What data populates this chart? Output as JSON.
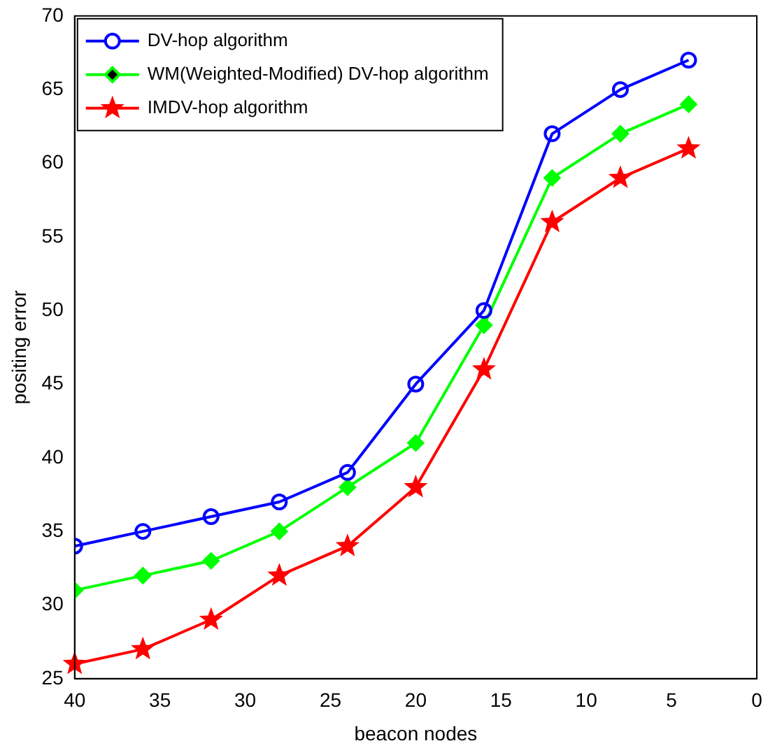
{
  "chart_data": {
    "type": "line",
    "xlabel": "beacon nodes",
    "ylabel": "positing error",
    "x": [
      40,
      36,
      32,
      28,
      24,
      20,
      16,
      12,
      8,
      4
    ],
    "xlim": [
      40,
      0
    ],
    "xticks": [
      40,
      35,
      30,
      25,
      20,
      15,
      10,
      5,
      0
    ],
    "ylim": [
      25,
      70
    ],
    "yticks": [
      25,
      30,
      35,
      40,
      45,
      50,
      55,
      60,
      65,
      70
    ],
    "grid": false,
    "legend": "top left",
    "line_style": "solid",
    "series": [
      {
        "name": "DV-hop algorithm",
        "color": "#0000ff",
        "marker": "circle",
        "values": [
          34,
          35,
          36,
          37,
          39,
          45,
          50,
          62,
          65,
          67
        ]
      },
      {
        "name": "WM(Weighted-Modified) DV-hop algorithm",
        "color": "#00ff00",
        "marker": "diamond",
        "values": [
          31,
          32,
          33,
          35,
          38,
          41,
          49,
          59,
          62,
          64
        ]
      },
      {
        "name": "IMDV-hop algorithm",
        "color": "#ff0000",
        "marker": "star",
        "values": [
          26,
          27,
          29,
          32,
          34,
          38,
          46,
          56,
          59,
          61
        ]
      }
    ]
  }
}
